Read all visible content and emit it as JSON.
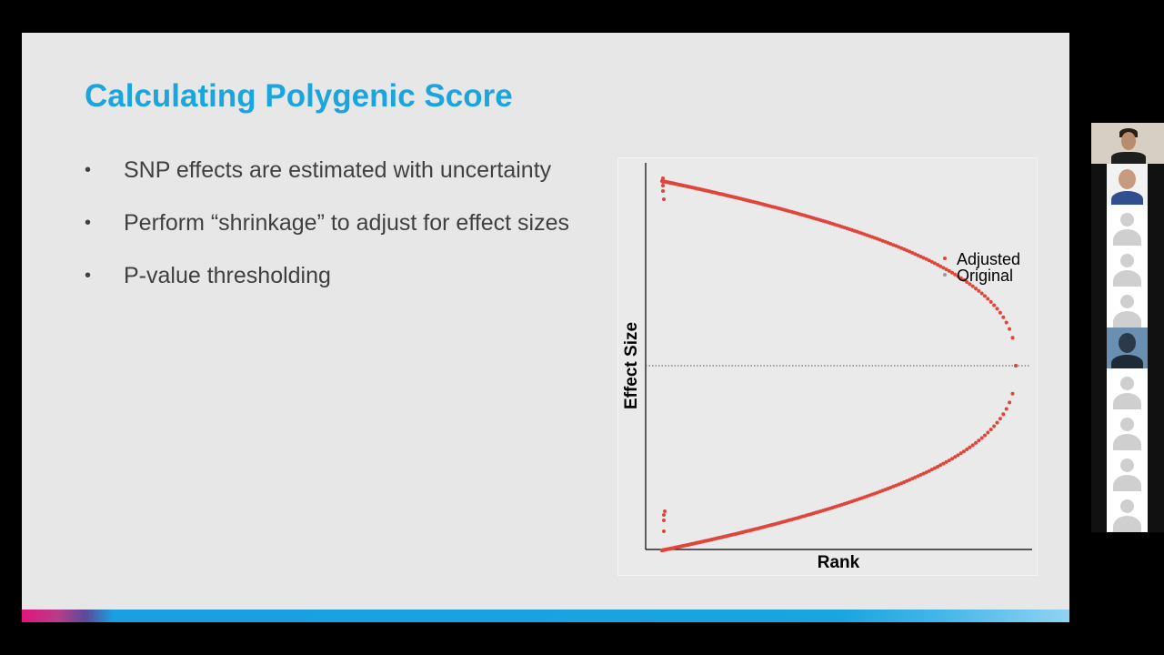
{
  "slide": {
    "title": "Calculating Polygenic Score",
    "bullets": [
      {
        "marker": "•",
        "text": "SNP effects are estimated with uncertainty"
      },
      {
        "marker": "•",
        "text": "Perform “shrinkage” to adjust for effect sizes"
      },
      {
        "marker": "•",
        "text": "P-value thresholding"
      }
    ],
    "colors": {
      "title": "#1aa5df",
      "text": "#404040",
      "background": "#e7e7e7"
    }
  },
  "chart_data": {
    "type": "scatter",
    "xlabel": "Rank",
    "ylabel": "Effect Size",
    "grid": false,
    "legend_position": "top-right",
    "reference_line": {
      "y": 0,
      "style": "dotted"
    },
    "series": [
      {
        "name": "Adjusted",
        "color": "#e0453a",
        "shape": "upper-and-lower-tail-converging-to-zero"
      },
      {
        "name": "Original",
        "color": "#9a9a9a"
      }
    ]
  },
  "participants": {
    "tiles": [
      {
        "kind": "video",
        "icon": "speaker-video"
      },
      {
        "kind": "photo",
        "icon": "participant-photo"
      },
      {
        "kind": "avatar",
        "icon": "default-avatar-icon"
      },
      {
        "kind": "avatar",
        "icon": "default-avatar-icon"
      },
      {
        "kind": "avatar",
        "icon": "default-avatar-icon"
      },
      {
        "kind": "photo",
        "icon": "participant-photo"
      },
      {
        "kind": "avatar",
        "icon": "default-avatar-icon"
      },
      {
        "kind": "avatar",
        "icon": "default-avatar-icon"
      },
      {
        "kind": "avatar",
        "icon": "default-avatar-icon"
      },
      {
        "kind": "avatar",
        "icon": "default-avatar-icon"
      }
    ]
  }
}
